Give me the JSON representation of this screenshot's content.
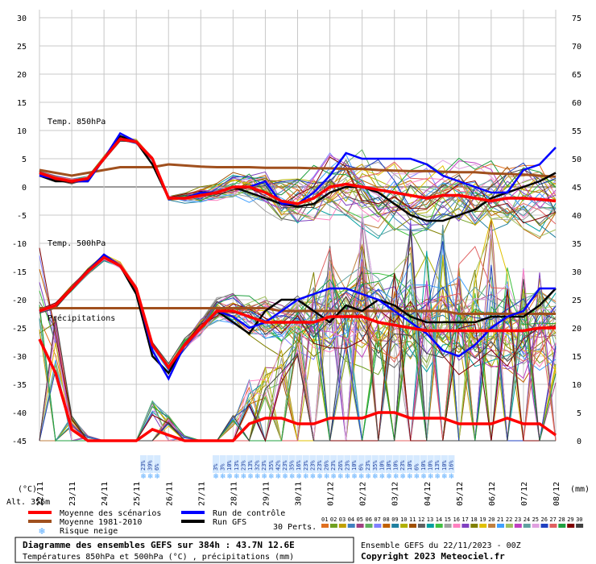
{
  "chart_data": {
    "type": "line",
    "title": "Diagramme des ensembles GEFS sur 384h : 43.7N 12.6E",
    "subtitle": "Températures 850hPa et 500hPa (°C) , précipitations (mm)",
    "run_info": "Ensemble GEFS du 22/11/2023 - 00Z",
    "copyright": "Copyright 2023 Meteociel.fr",
    "altitude": "Alt. 356m",
    "y_left_unit": "(°C)",
    "y_right_unit": "(mm)",
    "ylim_left": [
      -45,
      30
    ],
    "ylim_right": [
      0,
      75
    ],
    "y_left_ticks": [
      30,
      25,
      20,
      15,
      10,
      5,
      0,
      -5,
      -10,
      -15,
      -20,
      -25,
      -30,
      -35,
      -40,
      -45
    ],
    "y_right_ticks": [
      75,
      70,
      65,
      60,
      55,
      50,
      45,
      40,
      35,
      30,
      25,
      20,
      15,
      10,
      5,
      0
    ],
    "x_dates": [
      "22/11",
      "23/11",
      "24/11",
      "25/11",
      "26/11",
      "27/11",
      "28/11",
      "29/11",
      "30/11",
      "01/12",
      "02/12",
      "03/12",
      "04/12",
      "05/12",
      "06/12",
      "07/12",
      "08/12"
    ],
    "grid": true,
    "annotations": [
      "Temp. 850hPa",
      "Temp. 500hPa",
      "Précipitations"
    ],
    "t850_mean": [
      2.5,
      1.5,
      1,
      1.5,
      5,
      8.5,
      8,
      5,
      -2,
      -2,
      -1.5,
      -1,
      0,
      0,
      -1,
      -2.5,
      -3,
      -2,
      0,
      0.5,
      0,
      -0.5,
      -1,
      -1.5,
      -2,
      -1.5,
      -1.5,
      -2,
      -2.5,
      -2,
      -2,
      -2.2,
      -2.5
    ],
    "t850_clim": [
      3,
      2.5,
      2,
      2.5,
      3,
      3.5,
      3.5,
      3.5,
      4,
      3.8,
      3.6,
      3.5,
      3.5,
      3.5,
      3.4,
      3.4,
      3.4,
      3.3,
      3.3,
      3.2,
      3.2,
      3,
      2.9,
      2.8,
      2.8,
      2.7,
      2.6,
      2.6,
      2.4,
      2.3,
      2.2,
      2,
      1.8
    ],
    "t850_control": [
      2,
      1.5,
      1,
      1,
      5,
      9.5,
      8,
      5,
      -2,
      -2,
      -1,
      -1,
      0,
      0,
      1,
      -3,
      -3,
      -1,
      2,
      6,
      5,
      5,
      5,
      5,
      4,
      2,
      1,
      0,
      -1,
      -1,
      3,
      4,
      7
    ],
    "t850_gfs": [
      2,
      1,
      1,
      1,
      5,
      9,
      8,
      4,
      -2,
      -2,
      -1,
      -1,
      0,
      -1,
      -2,
      -3,
      -3.5,
      -3,
      -1,
      0,
      0,
      -1,
      -3,
      -5,
      -6,
      -6,
      -5,
      -4,
      -2,
      -1,
      0,
      1,
      2.5
    ],
    "t500_mean": [
      -22,
      -21,
      -18,
      -15,
      -12.5,
      -14,
      -18,
      -28,
      -32,
      -28,
      -25,
      -22,
      -22,
      -23,
      -24,
      -24,
      -24,
      -24,
      -23,
      -23,
      -23,
      -24,
      -24.5,
      -25,
      -25.5,
      -25.5,
      -25.5,
      -25.5,
      -25.5,
      -25.5,
      -25.5,
      -25,
      -25
    ],
    "t500_clim": [
      -21.5,
      -21.5,
      -21.5,
      -21.5,
      -21.5,
      -21.5,
      -21.5,
      -21.5,
      -21.5,
      -21.5,
      -21.5,
      -21.5,
      -21.5,
      -21.5,
      -21.5,
      -22,
      -22,
      -22,
      -22,
      -22,
      -22,
      -22,
      -22,
      -22,
      -22,
      -22,
      -22.5,
      -22.5,
      -22.5,
      -22.5,
      -22.5,
      -22.5,
      -22.5
    ],
    "t500_control": [
      -22,
      -21,
      -18,
      -15,
      -12,
      -14,
      -18,
      -29,
      -34,
      -28,
      -25,
      -22,
      -23,
      -25,
      -24,
      -22,
      -20,
      -19,
      -18,
      -18,
      -19,
      -20,
      -22,
      -24,
      -26,
      -29,
      -30,
      -28,
      -25,
      -23,
      -22,
      -18,
      -18
    ],
    "t500_gfs": [
      -22,
      -21,
      -18,
      -15,
      -12,
      -14,
      -19,
      -30,
      -33,
      -28,
      -25,
      -22,
      -24,
      -26,
      -22,
      -20,
      -20,
      -22,
      -24,
      -21,
      -22,
      -20,
      -21,
      -23,
      -24,
      -24,
      -24,
      -24,
      -23,
      -23,
      -23,
      -21,
      -18
    ],
    "precip_mean": [
      18,
      12,
      2,
      0,
      0,
      0,
      0,
      2,
      1,
      0,
      0,
      0,
      0,
      3,
      4,
      4,
      3,
      3,
      4,
      4,
      4,
      5,
      5,
      4,
      4,
      4,
      3,
      3,
      3,
      4,
      3,
      3,
      1
    ],
    "precip_max": [
      38,
      25,
      5,
      1,
      0,
      0,
      0,
      8,
      5,
      1,
      0,
      0,
      5,
      12,
      15,
      20,
      28,
      35,
      40,
      30,
      45,
      30,
      35,
      45,
      40,
      45,
      35,
      40,
      45,
      40,
      35,
      40,
      20
    ],
    "snow_risk_left": [
      "23%",
      "39%",
      "6%"
    ],
    "snow_risk_right": [
      "3%",
      "3%",
      "10%",
      "13%",
      "23%",
      "13%",
      "32%",
      "23%",
      "35%",
      "42%",
      "23%",
      "35%",
      "16%",
      "23%",
      "23%",
      "23%",
      "26%",
      "23%",
      "26%",
      "23%",
      "10%",
      "6%",
      "23%",
      "35%",
      "10%",
      "10%",
      "10%",
      "23%",
      "10%",
      "6%",
      "10%",
      "10%",
      "13%",
      "10%",
      "16%"
    ],
    "legend": [
      {
        "label": "Moyenne des scénarios",
        "color": "#ff0000"
      },
      {
        "label": "Moyenne 1981-2010",
        "color": "#a0501e"
      },
      {
        "label": "Risque neige",
        "color": "#55aaff"
      },
      {
        "label": "Run de contrôle",
        "color": "#0000ff"
      },
      {
        "label": "Run GFS",
        "color": "#000000"
      }
    ],
    "perts_label": "30 Perts.",
    "perts": [
      "01",
      "02",
      "03",
      "04",
      "05",
      "06",
      "07",
      "08",
      "09",
      "10",
      "11",
      "12",
      "13",
      "14",
      "15",
      "16",
      "17",
      "18",
      "19",
      "20",
      "21",
      "22",
      "23",
      "24",
      "25",
      "26",
      "27",
      "28",
      "29",
      "30"
    ],
    "pert_colors": [
      "#e07020",
      "#70a020",
      "#c0a000",
      "#4080c0",
      "#a04080",
      "#60b060",
      "#8080ff",
      "#c06000",
      "#2080a0",
      "#b0b000",
      "#a05000",
      "#606060",
      "#00a0a0",
      "#40c040",
      "#a0a0a0",
      "#ff80c0",
      "#8040c0",
      "#808000",
      "#e0c000",
      "#c08040",
      "#40a0ff",
      "#a0c060",
      "#c040c0",
      "#60a0a0",
      "#e0a0e0",
      "#2040c0",
      "#e06060",
      "#20a040",
      "#800000",
      "#404040"
    ]
  }
}
